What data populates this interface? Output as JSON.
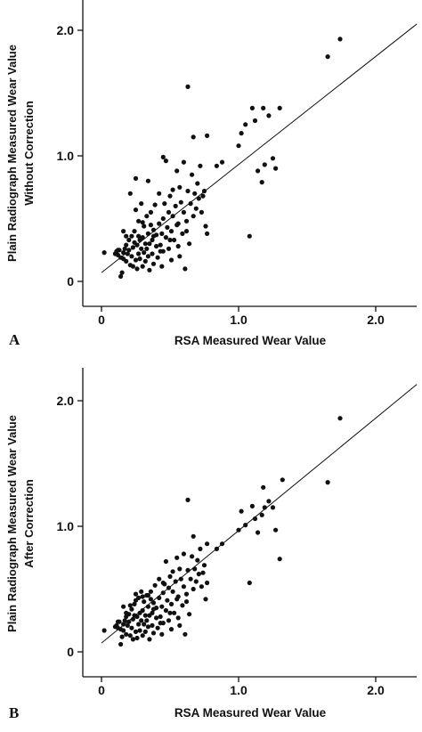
{
  "chart_data": [
    {
      "type": "scatter",
      "panel_label": "A",
      "xlabel": "RSA Measured Wear Value",
      "ylabel_lines": [
        "Plain Radiograph Measured Wear Value",
        "Without Correction"
      ],
      "xticks": [
        "0",
        "1.0",
        "2.0"
      ],
      "yticks": [
        "0",
        "1.0",
        "2.0"
      ],
      "xlim": [
        -0.05,
        2.3
      ],
      "ylim": [
        -0.2,
        2.25
      ],
      "fit_line": {
        "x0": 0.0,
        "y0": 0.07,
        "x1": 2.3,
        "y1": 2.05
      },
      "points": [
        [
          0.02,
          0.23
        ],
        [
          0.1,
          0.22
        ],
        [
          0.11,
          0.24
        ],
        [
          0.12,
          0.21
        ],
        [
          0.13,
          0.25
        ],
        [
          0.14,
          0.19
        ],
        [
          0.14,
          0.04
        ],
        [
          0.15,
          0.07
        ],
        [
          0.16,
          0.23
        ],
        [
          0.16,
          0.18
        ],
        [
          0.17,
          0.26
        ],
        [
          0.18,
          0.16
        ],
        [
          0.18,
          0.29
        ],
        [
          0.19,
          0.22
        ],
        [
          0.2,
          0.33
        ],
        [
          0.2,
          0.25
        ],
        [
          0.21,
          0.13
        ],
        [
          0.22,
          0.36
        ],
        [
          0.22,
          0.2
        ],
        [
          0.23,
          0.27
        ],
        [
          0.23,
          0.12
        ],
        [
          0.24,
          0.4
        ],
        [
          0.24,
          0.31
        ],
        [
          0.25,
          0.17
        ],
        [
          0.25,
          0.57
        ],
        [
          0.26,
          0.29
        ],
        [
          0.26,
          0.1
        ],
        [
          0.27,
          0.22
        ],
        [
          0.27,
          0.48
        ],
        [
          0.28,
          0.33
        ],
        [
          0.28,
          0.18
        ],
        [
          0.29,
          0.26
        ],
        [
          0.29,
          0.62
        ],
        [
          0.3,
          0.12
        ],
        [
          0.3,
          0.35
        ],
        [
          0.31,
          0.23
        ],
        [
          0.31,
          0.44
        ],
        [
          0.32,
          0.3
        ],
        [
          0.32,
          0.16
        ],
        [
          0.33,
          0.52
        ],
        [
          0.33,
          0.26
        ],
        [
          0.34,
          0.38
        ],
        [
          0.34,
          0.2
        ],
        [
          0.35,
          0.3
        ],
        [
          0.35,
          0.09
        ],
        [
          0.36,
          0.45
        ],
        [
          0.36,
          0.55
        ],
        [
          0.37,
          0.33
        ],
        [
          0.37,
          0.22
        ],
        [
          0.38,
          0.41
        ],
        [
          0.38,
          0.14
        ],
        [
          0.39,
          0.61
        ],
        [
          0.4,
          0.28
        ],
        [
          0.4,
          0.37
        ],
        [
          0.41,
          0.19
        ],
        [
          0.42,
          0.46
        ],
        [
          0.42,
          0.7
        ],
        [
          0.43,
          0.29
        ],
        [
          0.44,
          0.38
        ],
        [
          0.44,
          0.12
        ],
        [
          0.45,
          0.5
        ],
        [
          0.45,
          0.24
        ],
        [
          0.46,
          0.62
        ],
        [
          0.47,
          0.35
        ],
        [
          0.47,
          0.96
        ],
        [
          0.48,
          0.43
        ],
        [
          0.49,
          0.55
        ],
        [
          0.49,
          0.26
        ],
        [
          0.5,
          0.68
        ],
        [
          0.51,
          0.4
        ],
        [
          0.51,
          0.17
        ],
        [
          0.52,
          0.73
        ],
        [
          0.52,
          0.52
        ],
        [
          0.53,
          0.33
        ],
        [
          0.54,
          0.6
        ],
        [
          0.55,
          0.45
        ],
        [
          0.55,
          0.88
        ],
        [
          0.56,
          0.28
        ],
        [
          0.57,
          0.75
        ],
        [
          0.57,
          0.2
        ],
        [
          0.58,
          0.63
        ],
        [
          0.59,
          0.38
        ],
        [
          0.6,
          0.95
        ],
        [
          0.6,
          0.55
        ],
        [
          0.61,
          0.1
        ],
        [
          0.62,
          0.48
        ],
        [
          0.63,
          0.72
        ],
        [
          0.63,
          1.55
        ],
        [
          0.64,
          0.3
        ],
        [
          0.65,
          0.62
        ],
        [
          0.66,
          0.85
        ],
        [
          0.67,
          0.52
        ],
        [
          0.67,
          1.15
        ],
        [
          0.68,
          0.7
        ],
        [
          0.7,
          0.78
        ],
        [
          0.71,
          0.66
        ],
        [
          0.72,
          0.92
        ],
        [
          0.73,
          0.55
        ],
        [
          0.74,
          0.68
        ],
        [
          0.75,
          0.72
        ],
        [
          0.76,
          0.44
        ],
        [
          0.77,
          1.16
        ],
        [
          0.77,
          0.38
        ],
        [
          0.84,
          0.92
        ],
        [
          0.88,
          0.95
        ],
        [
          1.0,
          1.08
        ],
        [
          1.02,
          1.18
        ],
        [
          1.05,
          1.25
        ],
        [
          1.08,
          0.36
        ],
        [
          1.1,
          1.38
        ],
        [
          1.12,
          1.28
        ],
        [
          1.14,
          0.88
        ],
        [
          1.17,
          0.79
        ],
        [
          1.18,
          1.38
        ],
        [
          1.19,
          0.93
        ],
        [
          1.22,
          1.32
        ],
        [
          1.25,
          0.98
        ],
        [
          1.27,
          0.9
        ],
        [
          1.3,
          1.38
        ],
        [
          1.65,
          1.79
        ],
        [
          1.74,
          1.93
        ],
        [
          0.16,
          0.4
        ],
        [
          0.21,
          0.7
        ],
        [
          0.25,
          0.82
        ],
        [
          0.34,
          0.8
        ],
        [
          0.45,
          0.99
        ],
        [
          0.12,
          0.25
        ],
        [
          0.18,
          0.36
        ],
        [
          0.3,
          0.47
        ],
        [
          0.38,
          0.36
        ],
        [
          0.43,
          0.24
        ],
        [
          0.5,
          0.33
        ],
        [
          0.56,
          0.46
        ],
        [
          0.62,
          0.4
        ],
        [
          0.69,
          0.58
        ],
        [
          0.27,
          0.36
        ]
      ]
    },
    {
      "type": "scatter",
      "panel_label": "B",
      "xlabel": "RSA Measured Wear Value",
      "ylabel_lines": [
        "Plain Radiograph Measured Wear Value",
        "After Correction"
      ],
      "xticks": [
        "0",
        "1.0",
        "2.0"
      ],
      "yticks": [
        "0",
        "1.0",
        "2.0"
      ],
      "xlim": [
        -0.05,
        2.3
      ],
      "ylim": [
        -0.2,
        2.25
      ],
      "fit_line": {
        "x0": 0.0,
        "y0": 0.07,
        "x1": 2.3,
        "y1": 2.13
      },
      "points": [
        [
          0.02,
          0.17
        ],
        [
          0.1,
          0.2
        ],
        [
          0.11,
          0.21
        ],
        [
          0.12,
          0.19
        ],
        [
          0.13,
          0.24
        ],
        [
          0.14,
          0.18
        ],
        [
          0.14,
          0.06
        ],
        [
          0.15,
          0.12
        ],
        [
          0.16,
          0.22
        ],
        [
          0.16,
          0.17
        ],
        [
          0.17,
          0.25
        ],
        [
          0.18,
          0.14
        ],
        [
          0.18,
          0.28
        ],
        [
          0.19,
          0.21
        ],
        [
          0.2,
          0.3
        ],
        [
          0.2,
          0.24
        ],
        [
          0.21,
          0.13
        ],
        [
          0.22,
          0.34
        ],
        [
          0.22,
          0.19
        ],
        [
          0.23,
          0.26
        ],
        [
          0.23,
          0.1
        ],
        [
          0.24,
          0.38
        ],
        [
          0.24,
          0.29
        ],
        [
          0.25,
          0.16
        ],
        [
          0.25,
          0.46
        ],
        [
          0.26,
          0.28
        ],
        [
          0.26,
          0.11
        ],
        [
          0.27,
          0.22
        ],
        [
          0.27,
          0.43
        ],
        [
          0.28,
          0.31
        ],
        [
          0.28,
          0.17
        ],
        [
          0.29,
          0.25
        ],
        [
          0.29,
          0.48
        ],
        [
          0.3,
          0.13
        ],
        [
          0.3,
          0.33
        ],
        [
          0.31,
          0.22
        ],
        [
          0.31,
          0.4
        ],
        [
          0.32,
          0.29
        ],
        [
          0.32,
          0.16
        ],
        [
          0.33,
          0.45
        ],
        [
          0.33,
          0.25
        ],
        [
          0.34,
          0.36
        ],
        [
          0.34,
          0.2
        ],
        [
          0.35,
          0.29
        ],
        [
          0.35,
          0.1
        ],
        [
          0.36,
          0.42
        ],
        [
          0.36,
          0.48
        ],
        [
          0.37,
          0.31
        ],
        [
          0.37,
          0.21
        ],
        [
          0.38,
          0.39
        ],
        [
          0.38,
          0.15
        ],
        [
          0.39,
          0.53
        ],
        [
          0.4,
          0.27
        ],
        [
          0.4,
          0.35
        ],
        [
          0.41,
          0.19
        ],
        [
          0.42,
          0.43
        ],
        [
          0.42,
          0.58
        ],
        [
          0.43,
          0.28
        ],
        [
          0.44,
          0.36
        ],
        [
          0.44,
          0.14
        ],
        [
          0.45,
          0.47
        ],
        [
          0.45,
          0.23
        ],
        [
          0.46,
          0.54
        ],
        [
          0.47,
          0.33
        ],
        [
          0.47,
          0.72
        ],
        [
          0.48,
          0.41
        ],
        [
          0.49,
          0.51
        ],
        [
          0.49,
          0.25
        ],
        [
          0.5,
          0.6
        ],
        [
          0.51,
          0.38
        ],
        [
          0.51,
          0.18
        ],
        [
          0.52,
          0.64
        ],
        [
          0.52,
          0.48
        ],
        [
          0.53,
          0.31
        ],
        [
          0.54,
          0.56
        ],
        [
          0.55,
          0.42
        ],
        [
          0.55,
          0.75
        ],
        [
          0.56,
          0.27
        ],
        [
          0.57,
          0.66
        ],
        [
          0.57,
          0.21
        ],
        [
          0.58,
          0.58
        ],
        [
          0.59,
          0.37
        ],
        [
          0.6,
          0.78
        ],
        [
          0.6,
          0.52
        ],
        [
          0.61,
          0.14
        ],
        [
          0.62,
          0.46
        ],
        [
          0.63,
          0.65
        ],
        [
          0.63,
          1.21
        ],
        [
          0.64,
          0.3
        ],
        [
          0.65,
          0.58
        ],
        [
          0.66,
          0.76
        ],
        [
          0.67,
          0.5
        ],
        [
          0.67,
          0.92
        ],
        [
          0.68,
          0.66
        ],
        [
          0.7,
          0.73
        ],
        [
          0.71,
          0.62
        ],
        [
          0.72,
          0.82
        ],
        [
          0.73,
          0.52
        ],
        [
          0.74,
          0.63
        ],
        [
          0.75,
          0.69
        ],
        [
          0.76,
          0.42
        ],
        [
          0.77,
          0.86
        ],
        [
          0.77,
          0.55
        ],
        [
          0.84,
          0.82
        ],
        [
          0.88,
          0.86
        ],
        [
          1.0,
          0.97
        ],
        [
          1.02,
          1.12
        ],
        [
          1.05,
          1.01
        ],
        [
          1.08,
          0.55
        ],
        [
          1.1,
          1.16
        ],
        [
          1.12,
          1.06
        ],
        [
          1.14,
          0.95
        ],
        [
          1.17,
          1.09
        ],
        [
          1.18,
          1.31
        ],
        [
          1.19,
          1.15
        ],
        [
          1.22,
          1.2
        ],
        [
          1.25,
          1.15
        ],
        [
          1.27,
          0.97
        ],
        [
          1.3,
          0.74
        ],
        [
          1.32,
          1.37
        ],
        [
          1.65,
          1.35
        ],
        [
          1.74,
          1.86
        ],
        [
          0.16,
          0.36
        ],
        [
          0.21,
          0.37
        ],
        [
          0.25,
          0.41
        ],
        [
          0.34,
          0.45
        ],
        [
          0.45,
          0.55
        ],
        [
          0.12,
          0.24
        ],
        [
          0.18,
          0.31
        ],
        [
          0.3,
          0.44
        ],
        [
          0.38,
          0.34
        ],
        [
          0.43,
          0.23
        ],
        [
          0.5,
          0.31
        ],
        [
          0.56,
          0.44
        ],
        [
          0.62,
          0.4
        ],
        [
          0.69,
          0.56
        ]
      ]
    }
  ]
}
